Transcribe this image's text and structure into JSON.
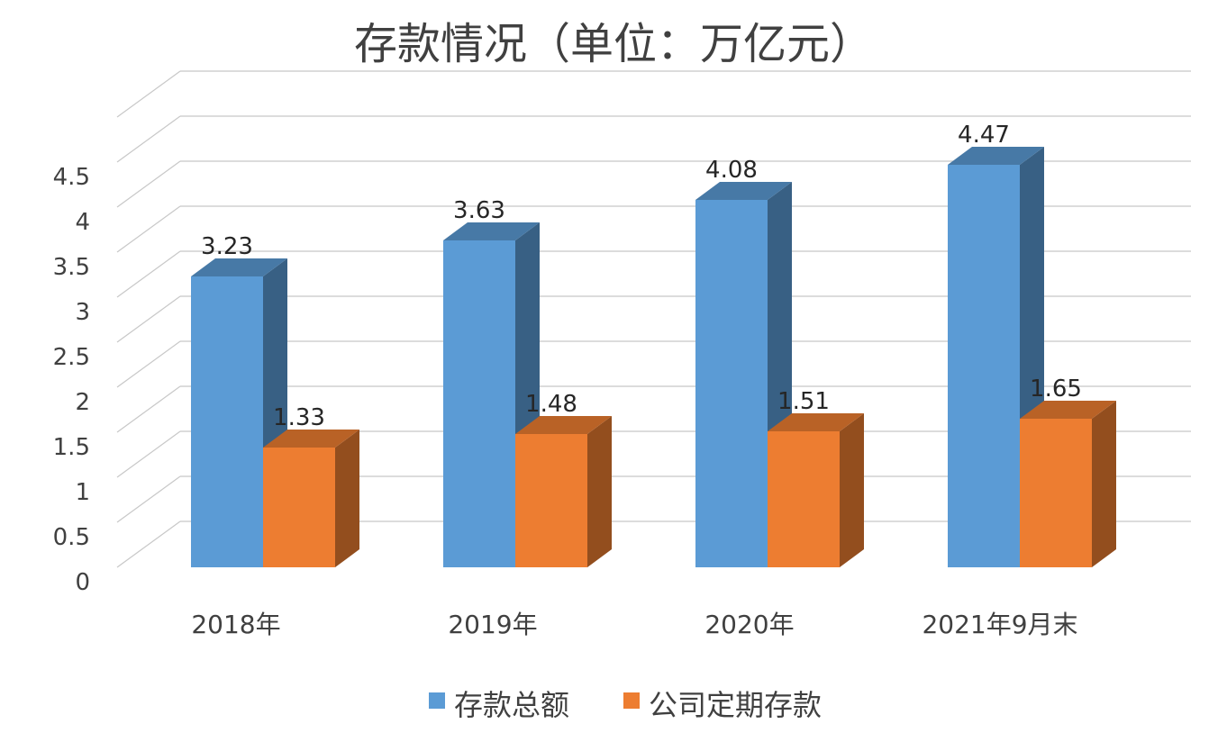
{
  "chart_data": {
    "type": "bar",
    "title": "存款情况（单位：万亿元）",
    "categories": [
      "2018年",
      "2019年",
      "2020年",
      "2021年9月末"
    ],
    "series": [
      {
        "name": "存款总额",
        "values": [
          3.23,
          3.63,
          4.08,
          4.47
        ],
        "color": "#5b9bd5"
      },
      {
        "name": "公司定期存款",
        "values": [
          1.33,
          1.48,
          1.51,
          1.65
        ],
        "color": "#ed7d31"
      }
    ],
    "y_ticks": [
      "0",
      "0.5",
      "1",
      "1.5",
      "2",
      "2.5",
      "3",
      "3.5",
      "4",
      "4.5"
    ],
    "ylim": [
      0,
      4.5
    ],
    "grid": true,
    "legend_position": "bottom",
    "style": "3d-column"
  }
}
